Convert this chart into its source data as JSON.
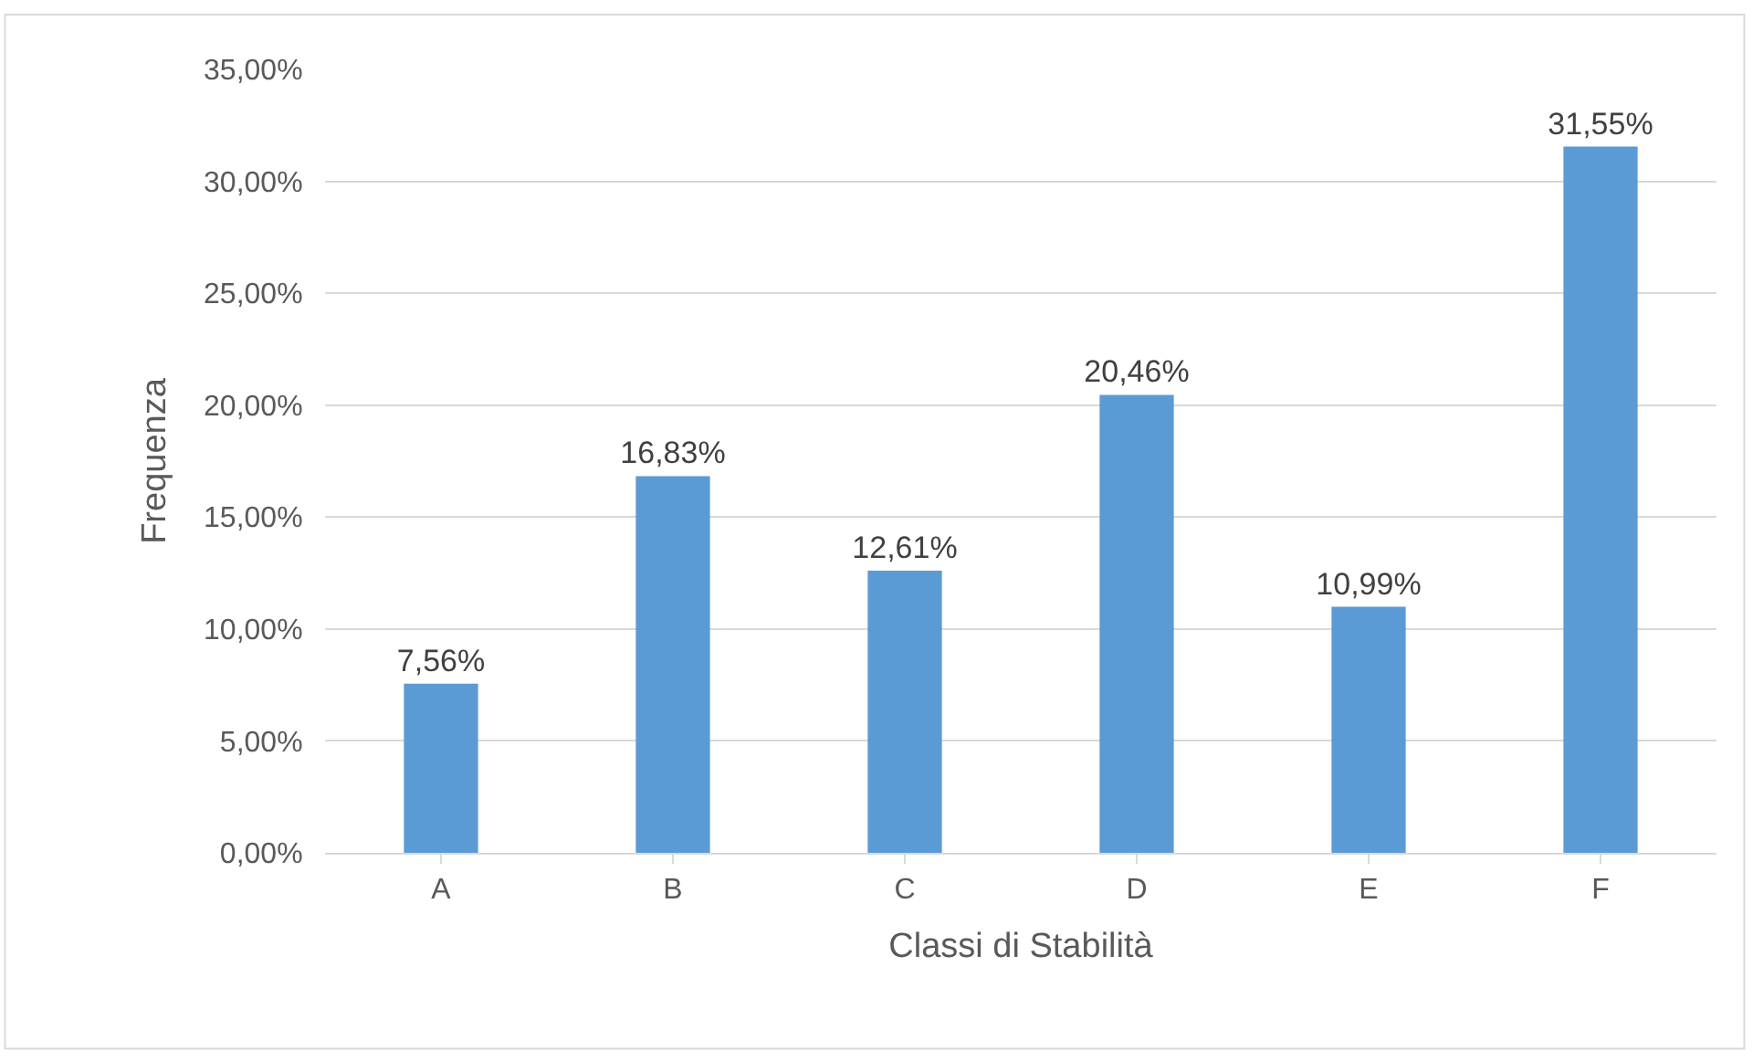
{
  "chart_data": {
    "type": "bar",
    "xlabel": "Classi di Stabilità",
    "ylabel": "Frequenza",
    "categories": [
      "A",
      "B",
      "C",
      "D",
      "E",
      "F"
    ],
    "values": [
      7.56,
      16.83,
      12.61,
      20.46,
      10.99,
      31.55
    ],
    "value_labels": [
      "7,56%",
      "16,83%",
      "12,61%",
      "20,46%",
      "10,99%",
      "31,55%"
    ],
    "color": "#5b9bd5",
    "ylim": [
      0,
      35
    ],
    "yticks": [
      {
        "value": 0,
        "label": "0,00%"
      },
      {
        "value": 5,
        "label": "5,00%"
      },
      {
        "value": 10,
        "label": "10,00%"
      },
      {
        "value": 15,
        "label": "15,00%"
      },
      {
        "value": 20,
        "label": "20,00%"
      },
      {
        "value": 25,
        "label": "25,00%"
      },
      {
        "value": 30,
        "label": "30,00%"
      },
      {
        "value": 35,
        "label": "35,00%"
      }
    ],
    "grid": "y"
  }
}
